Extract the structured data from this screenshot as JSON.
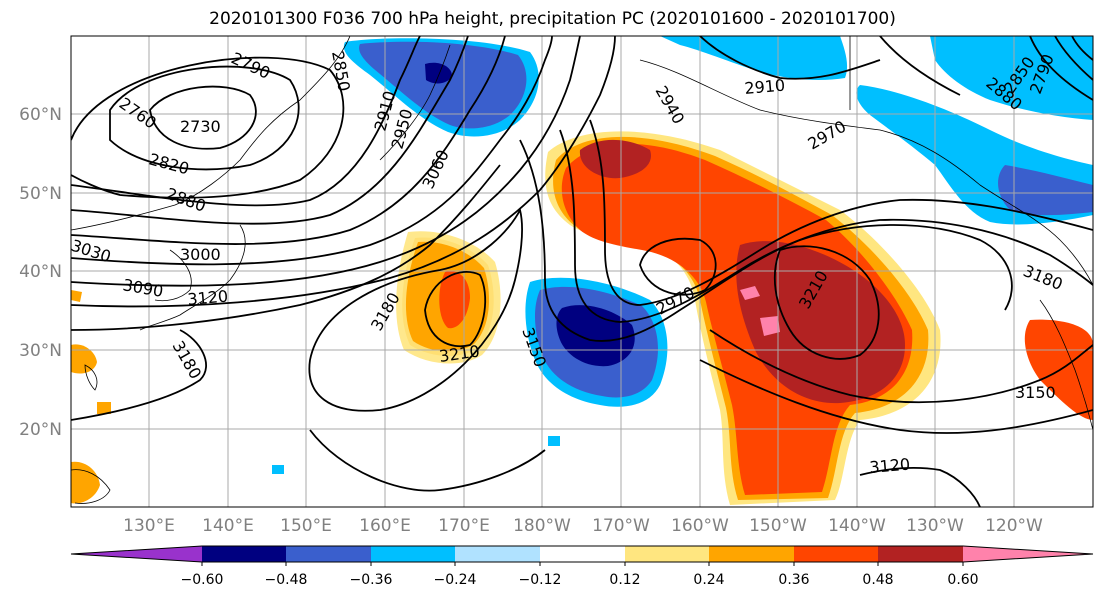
{
  "title": "2020101300 F036 700 hPa height, precipitation PC (2020101600 - 2020101700)",
  "map": {
    "lat_labels": [
      "60°N",
      "50°N",
      "40°N",
      "30°N",
      "20°N"
    ],
    "lon_labels": [
      "130°E",
      "140°E",
      "150°E",
      "160°E",
      "170°E",
      "180°W",
      "170°W",
      "160°W",
      "150°W",
      "140°W",
      "130°W",
      "120°W"
    ],
    "contour_labels": [
      "2790",
      "2850",
      "2760",
      "2730",
      "2820",
      "2880",
      "2910",
      "2950",
      "3060",
      "3030",
      "3000",
      "3090",
      "3120",
      "3180",
      "2910",
      "2940",
      "2970",
      "2880",
      "2850",
      "2790",
      "3150",
      "2970",
      "3210",
      "3180",
      "3210",
      "3180",
      "3150",
      "3120"
    ]
  },
  "colorbar": {
    "tick_labels": [
      "−0.60",
      "−0.48",
      "−0.36",
      "−0.24",
      "−0.12",
      "0.12",
      "0.24",
      "0.36",
      "0.48",
      "0.60"
    ],
    "colors": [
      "#9932cc",
      "#000080",
      "#3a5fcd",
      "#00bfff",
      "#b0e2ff",
      "#ffffff",
      "#ffe680",
      "#ffa500",
      "#ff4500",
      "#b22222",
      "#ff82ab"
    ]
  }
}
